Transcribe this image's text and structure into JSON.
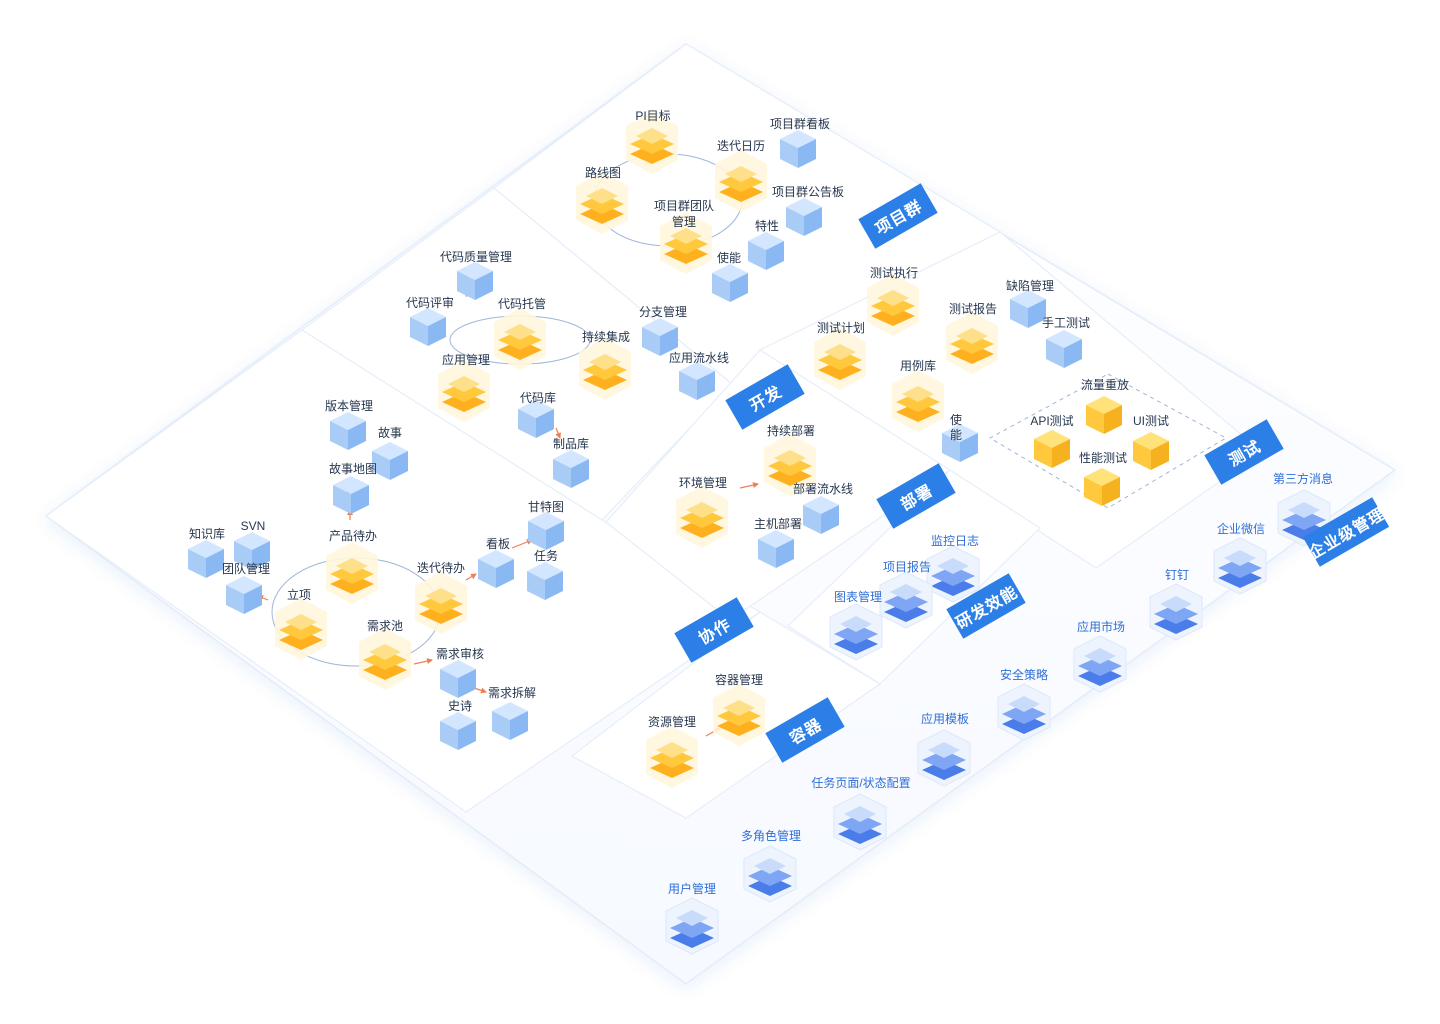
{
  "colors": {
    "accent_blue": "#2b7fe6",
    "node_yellow": "#ffc83d",
    "node_blue": "#a9ccf7",
    "node_indigo": "#5b8def",
    "arrow": "#f07d54",
    "text": "#27374f",
    "text_blue": "#2f6fd6"
  },
  "sections": {
    "xiangmuqun": "项目群",
    "kaifa": "开发",
    "ceshi": "测试",
    "bushu": "部署",
    "xiezuo": "协作",
    "yanfa": "研发效能",
    "rongqi": "容器",
    "qiye": "企业级管理"
  },
  "nodes": {
    "pi_target": "PI目标",
    "roadmap": "路线图",
    "iteration_calendar": "迭代日历",
    "program_team": "项目群团队管理",
    "program_kanban": "项目群看板",
    "program_notice": "项目群公告板",
    "feature": "特性",
    "enabler_top": "使能",
    "code_quality": "代码质量管理",
    "code_review": "代码评审",
    "code_hosting": "代码托管",
    "continuous_integration": "持续集成",
    "branch_management": "分支管理",
    "app_pipeline": "应用流水线",
    "app_management": "应用管理",
    "code_repo": "代码库",
    "artifact_repo": "制品库",
    "test_execution": "测试执行",
    "defect_management": "缺陷管理",
    "test_plan": "测试计划",
    "test_report": "测试报告",
    "manual_test": "手工测试",
    "case_library": "用例库",
    "enabler_test": "使能",
    "traffic_replay": "流量重放",
    "api_test": "API测试",
    "ui_test": "UI测试",
    "perf_test": "性能测试",
    "continuous_deploy": "持续部署",
    "env_management": "环境管理",
    "deploy_pipeline": "部署流水线",
    "host_deploy": "主机部署",
    "version_management": "版本管理",
    "story": "故事",
    "story_map": "故事地图",
    "knowledge_base": "知识库",
    "svn": "SVN",
    "team_management": "团队管理",
    "product_backlog": "产品待办",
    "project_init": "立项",
    "iteration_backlog": "迭代待办",
    "kanban": "看板",
    "gantt": "甘特图",
    "task": "任务",
    "requirement_pool": "需求池",
    "requirement_review": "需求审核",
    "epic": "史诗",
    "requirement_split": "需求拆解",
    "resource_management": "资源管理",
    "container_management": "容器管理",
    "monitor_log": "监控日志",
    "project_report": "项目报告",
    "chart_management": "图表管理",
    "third_party_msg": "第三方消息",
    "wecom": "企业微信",
    "dingtalk": "钉钉",
    "app_market": "应用市场",
    "security_policy": "安全策略",
    "app_template": "应用模板",
    "task_page_config": "任务页面/状态配置",
    "multi_role": "多角色管理",
    "user_management": "用户管理"
  }
}
